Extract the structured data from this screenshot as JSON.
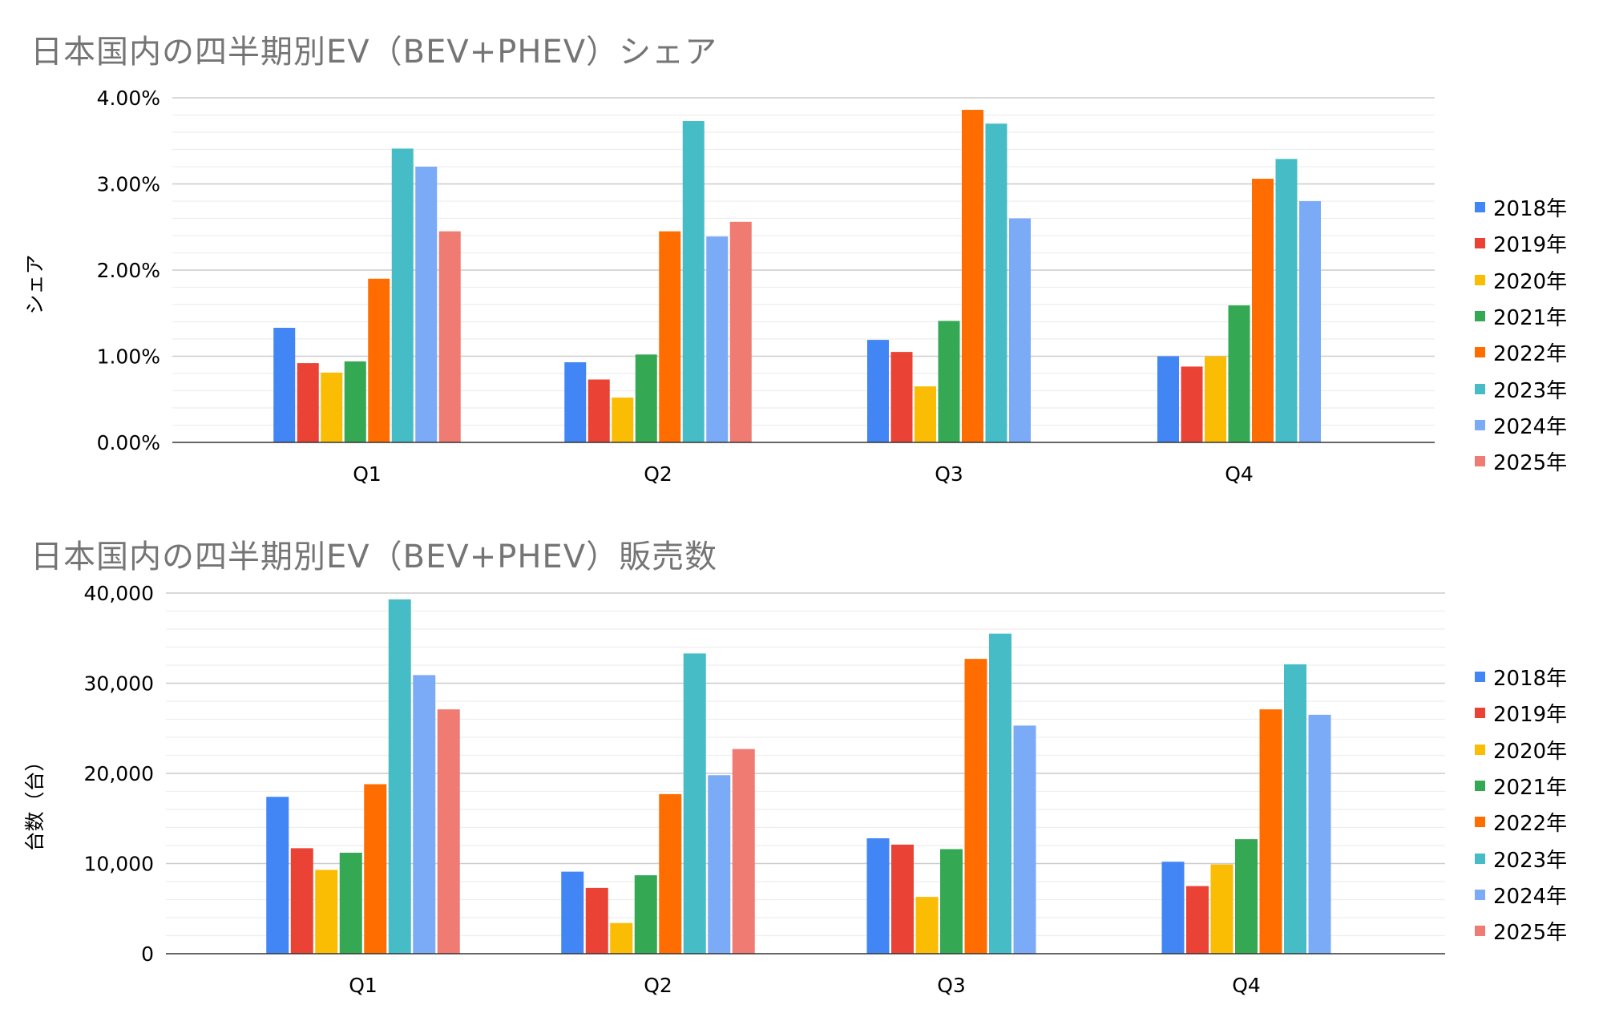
{
  "chart_data": [
    {
      "type": "bar",
      "title": "日本国内の四半期別EV（BEV+PHEV）シェア",
      "ylabel": "シェア",
      "xlabel": "",
      "categories": [
        "Q1",
        "Q2",
        "Q3",
        "Q4"
      ],
      "ylim": [
        0,
        0.04
      ],
      "yticks": [
        "0.00%",
        "1.00%",
        "2.00%",
        "3.00%",
        "4.00%"
      ],
      "grid": true,
      "legend": "right",
      "series": [
        {
          "name": "2018年",
          "color": "#4285F4",
          "values": [
            0.0133,
            0.0093,
            0.0119,
            0.01
          ]
        },
        {
          "name": "2019年",
          "color": "#EA4335",
          "values": [
            0.0092,
            0.0073,
            0.0105,
            0.0088
          ]
        },
        {
          "name": "2020年",
          "color": "#FBBC04",
          "values": [
            0.0081,
            0.0052,
            0.0065,
            0.01
          ]
        },
        {
          "name": "2021年",
          "color": "#34A853",
          "values": [
            0.0094,
            0.0102,
            0.0141,
            0.0159
          ]
        },
        {
          "name": "2022年",
          "color": "#FF6D01",
          "values": [
            0.019,
            0.0245,
            0.0386,
            0.0306
          ]
        },
        {
          "name": "2023年",
          "color": "#46BDC6",
          "values": [
            0.0341,
            0.0373,
            0.037,
            0.0329
          ]
        },
        {
          "name": "2024年",
          "color": "#7BAAF7",
          "values": [
            0.032,
            0.0239,
            0.026,
            0.028
          ]
        },
        {
          "name": "2025年",
          "color": "#F07B72",
          "values": [
            0.0245,
            0.0256,
            null,
            null
          ]
        }
      ]
    },
    {
      "type": "bar",
      "title": "日本国内の四半期別EV（BEV+PHEV）販売数",
      "ylabel": "台数（台）",
      "xlabel": "",
      "categories": [
        "Q1",
        "Q2",
        "Q3",
        "Q4"
      ],
      "ylim": [
        0,
        40000
      ],
      "yticks": [
        "0",
        "10,000",
        "20,000",
        "30,000",
        "40,000"
      ],
      "grid": true,
      "legend": "right",
      "series": [
        {
          "name": "2018年",
          "color": "#4285F4",
          "values": [
            17400,
            9100,
            12800,
            10200
          ]
        },
        {
          "name": "2019年",
          "color": "#EA4335",
          "values": [
            11700,
            7300,
            12100,
            7500
          ]
        },
        {
          "name": "2020年",
          "color": "#FBBC04",
          "values": [
            9300,
            3400,
            6300,
            9900
          ]
        },
        {
          "name": "2021年",
          "color": "#34A853",
          "values": [
            11200,
            8700,
            11600,
            12700
          ]
        },
        {
          "name": "2022年",
          "color": "#FF6D01",
          "values": [
            18800,
            17700,
            32700,
            27100
          ]
        },
        {
          "name": "2023年",
          "color": "#46BDC6",
          "values": [
            39300,
            33300,
            35500,
            32100
          ]
        },
        {
          "name": "2024年",
          "color": "#7BAAF7",
          "values": [
            30900,
            19800,
            25300,
            26500
          ]
        },
        {
          "name": "2025年",
          "color": "#F07B72",
          "values": [
            27100,
            22700,
            null,
            null
          ]
        }
      ]
    }
  ]
}
